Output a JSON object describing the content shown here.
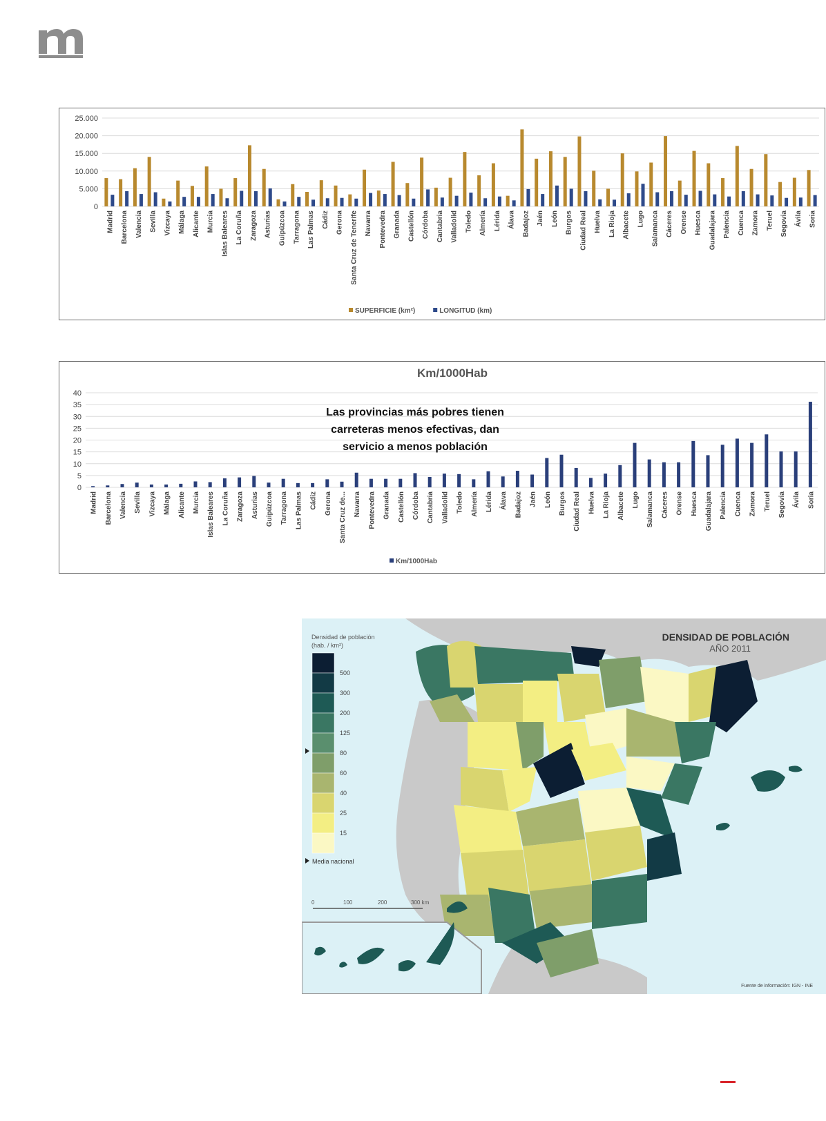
{
  "chart_data": [
    {
      "type": "bar",
      "categories": [
        "Madrid",
        "Barcelona",
        "Valencia",
        "Sevilla",
        "Vizcaya",
        "Málaga",
        "Alicante",
        "Murcia",
        "Islas Baleares",
        "La Coruña",
        "Zaragoza",
        "Asturias",
        "Guipúzcoa",
        "Tarragona",
        "Las Palmas",
        "Cádiz",
        "Gerona",
        "Santa Cruz de Tenerife",
        "Navarra",
        "Pontevedra",
        "Granada",
        "Castellón",
        "Córdoba",
        "Cantabria",
        "Valladolid",
        "Toledo",
        "Almería",
        "Lérida",
        "Álava",
        "Badajoz",
        "Jaén",
        "León",
        "Burgos",
        "Ciudad Real",
        "Huelva",
        "La Rioja",
        "Albacete",
        "Lugo",
        "Salamanca",
        "Cáceres",
        "Orense",
        "Huesca",
        "Guadalajara",
        "Palencia",
        "Cuenca",
        "Zamora",
        "Teruel",
        "Segovia",
        "Ávila",
        "Soria"
      ],
      "series": [
        {
          "name": "SUPERFICIE (km²)",
          "color": "#b8892e",
          "values": [
            8000,
            7700,
            10800,
            14000,
            2200,
            7300,
            5800,
            11300,
            5000,
            8000,
            17300,
            10600,
            2000,
            6300,
            4100,
            7400,
            5900,
            3400,
            10400,
            4500,
            12600,
            6600,
            13800,
            5300,
            8100,
            15400,
            8800,
            12200,
            3000,
            21800,
            13500,
            15600,
            14000,
            19800,
            10100,
            5000,
            15000,
            9900,
            12400,
            19900,
            7300,
            15700,
            12200,
            8000,
            17100,
            10600,
            14800,
            6900,
            8100,
            10300
          ]
        },
        {
          "name": "LONGITUD (km)",
          "color": "#2e4a8a",
          "values": [
            3300,
            4300,
            3500,
            4000,
            1400,
            2700,
            2700,
            3500,
            2300,
            4400,
            4300,
            5100,
            1400,
            2700,
            1900,
            2300,
            2400,
            2200,
            3800,
            3500,
            3200,
            2200,
            4800,
            2500,
            3000,
            3900,
            2300,
            2800,
            1700,
            4900,
            3500,
            5900,
            5000,
            4300,
            2000,
            1900,
            3700,
            6400,
            4000,
            4300,
            3300,
            4400,
            3400,
            2800,
            4300,
            3400,
            3100,
            2400,
            2500,
            3200
          ]
        }
      ],
      "ylim": [
        0,
        25000
      ],
      "yticks": [
        0,
        5000,
        10000,
        15000,
        20000,
        25000
      ],
      "ytick_labels": [
        "0",
        "5.000",
        "10.000",
        "15.000",
        "20.000",
        "25.000"
      ],
      "grid": true,
      "legend": "bottom"
    },
    {
      "type": "bar",
      "title": "Km/1000Hab",
      "categories": [
        "Madrid",
        "Barcelona",
        "Valencia",
        "Sevilla",
        "Vizcaya",
        "Málaga",
        "Alicante",
        "Murcia",
        "Islas Baleares",
        "La Coruña",
        "Zaragoza",
        "Asturias",
        "Guipúzcoa",
        "Tarragona",
        "Las Palmas",
        "Cádiz",
        "Gerona",
        "Santa Cruz de...",
        "Navarra",
        "Pontevedra",
        "Granada",
        "Castellón",
        "Córdoba",
        "Cantabria",
        "Valladolid",
        "Toledo",
        "Almería",
        "Lérida",
        "Álava",
        "Badajoz",
        "Jaén",
        "León",
        "Burgos",
        "Ciudad Real",
        "Huelva",
        "La Rioja",
        "Albacete",
        "Lugo",
        "Salamanca",
        "Cáceres",
        "Orense",
        "Huesca",
        "Guadalajara",
        "Palencia",
        "Cuenca",
        "Zamora",
        "Teruel",
        "Segovia",
        "Ávila",
        "Soria"
      ],
      "series": [
        {
          "name": "Km/1000Hab",
          "color": "#2a3f7a",
          "values": [
            0.5,
            0.8,
            1.4,
            2.0,
            1.2,
            1.2,
            1.5,
            2.5,
            2.2,
            3.8,
            4.2,
            4.8,
            2.0,
            3.6,
            1.8,
            1.8,
            3.4,
            2.4,
            6.2,
            3.6,
            3.6,
            3.6,
            6.0,
            4.4,
            5.8,
            5.6,
            3.4,
            6.8,
            4.6,
            7.0,
            5.4,
            12.4,
            13.8,
            8.2,
            4.0,
            5.8,
            9.4,
            18.8,
            11.8,
            10.6,
            10.6,
            19.6,
            13.6,
            18.0,
            20.6,
            18.8,
            22.4,
            15.2,
            15.2,
            36.2
          ]
        }
      ],
      "ylim": [
        0,
        40
      ],
      "yticks": [
        0,
        5,
        10,
        15,
        20,
        25,
        30,
        35,
        40
      ],
      "ytick_labels": [
        "0",
        "5",
        "10",
        "15",
        "20",
        "25",
        "30",
        "35",
        "40"
      ],
      "grid": true,
      "legend": "bottom",
      "annotation": [
        "Las provincias más pobres tienen",
        "carreteras menos efectivas, dan",
        "servicio a menos población"
      ]
    }
  ],
  "map": {
    "title": "DENSIDAD DE POBLACIÓN",
    "subtitle": "AÑO 2011",
    "legend_title_1": "Densidad de población",
    "legend_title_2": "(hab. / km²)",
    "legend_labels": [
      "500",
      "300",
      "200",
      "125",
      "80",
      "60",
      "40",
      "25",
      "15"
    ],
    "legend_colors": [
      "#0c1e33",
      "#123a45",
      "#1e5a55",
      "#3a7763",
      "#5a8f6e",
      "#7f9e6a",
      "#a9b56f",
      "#d9d56f",
      "#f3ee83",
      "#fbf8c4"
    ],
    "media_label": "Media nacional",
    "scale_labels": [
      "0",
      "100",
      "200",
      "300 km"
    ],
    "source": "Fuente de información: IGN - INE"
  }
}
